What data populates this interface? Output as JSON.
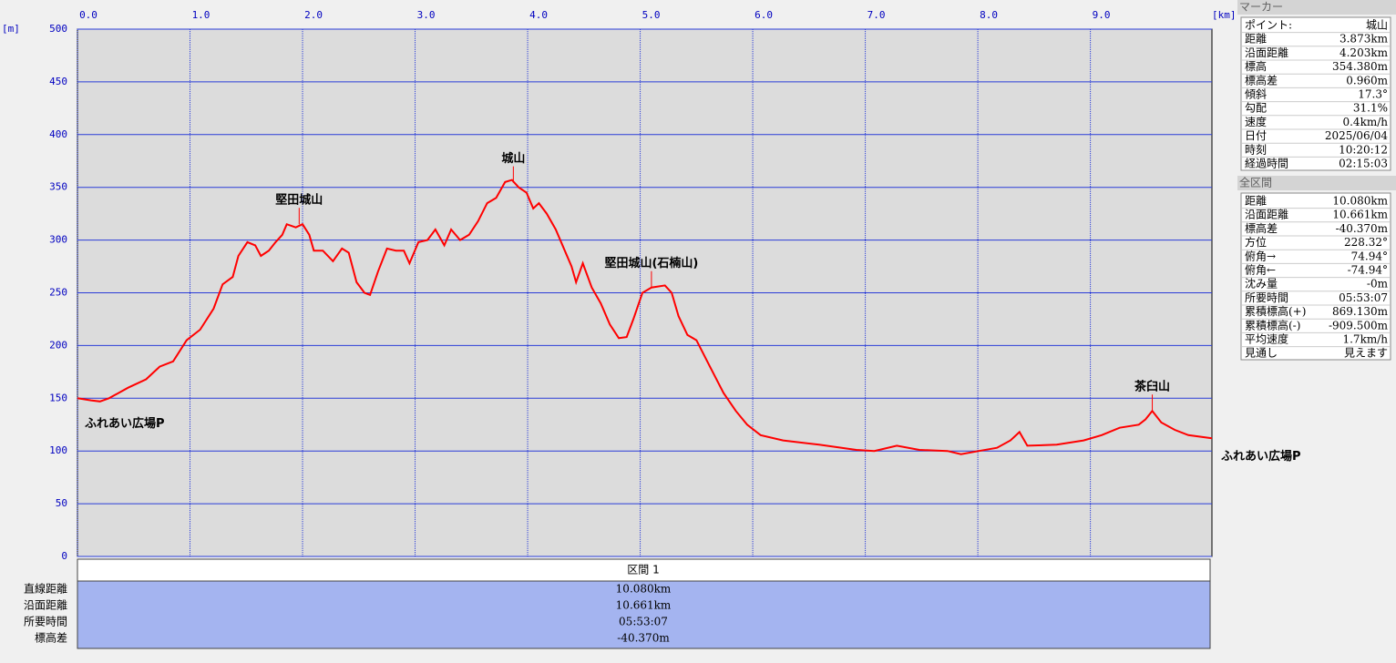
{
  "chart_data": {
    "type": "line",
    "color": "#ff0000",
    "grid": true,
    "y_unit": "[m]",
    "x_unit": "[km]",
    "xlim": [
      0,
      10.08
    ],
    "ylim": [
      0,
      500
    ],
    "xticks": [
      {
        "value": 0,
        "label": "0.0"
      },
      {
        "value": 1,
        "label": "1.0"
      },
      {
        "value": 2,
        "label": "2.0"
      },
      {
        "value": 3,
        "label": "3.0"
      },
      {
        "value": 4,
        "label": "4.0"
      },
      {
        "value": 5,
        "label": "5.0"
      },
      {
        "value": 6,
        "label": "6.0"
      },
      {
        "value": 7,
        "label": "7.0"
      },
      {
        "value": 8,
        "label": "8.0"
      },
      {
        "value": 9,
        "label": "9.0"
      }
    ],
    "yticks": [
      0,
      50,
      100,
      150,
      200,
      250,
      300,
      350,
      400,
      450,
      500
    ],
    "x": [
      0,
      0.12,
      0.2,
      0.28,
      0.45,
      0.61,
      0.73,
      0.85,
      0.97,
      1.09,
      1.21,
      1.29,
      1.38,
      1.43,
      1.51,
      1.58,
      1.63,
      1.7,
      1.76,
      1.82,
      1.86,
      1.94,
      2.0,
      2.06,
      2.1,
      2.18,
      2.27,
      2.35,
      2.41,
      2.48,
      2.55,
      2.6,
      2.67,
      2.75,
      2.83,
      2.9,
      2.95,
      3.03,
      3.11,
      3.18,
      3.26,
      3.32,
      3.4,
      3.48,
      3.56,
      3.64,
      3.72,
      3.8,
      3.86,
      3.92,
      3.99,
      4.05,
      4.1,
      4.17,
      4.25,
      4.33,
      4.39,
      4.43,
      4.49,
      4.57,
      4.65,
      4.73,
      4.81,
      4.88,
      4.94,
      5.02,
      5.1,
      5.22,
      5.28,
      5.34,
      5.42,
      5.5,
      5.62,
      5.74,
      5.85,
      5.95,
      6.07,
      6.27,
      6.59,
      6.92,
      7.08,
      7.28,
      7.48,
      7.73,
      7.85,
      8.01,
      8.17,
      8.29,
      8.37,
      8.44,
      8.7,
      8.94,
      9.1,
      9.26,
      9.43,
      9.49,
      9.55,
      9.63,
      9.75,
      9.87,
      10.08
    ],
    "values": [
      150,
      148,
      147,
      150,
      160,
      168,
      180,
      185,
      205,
      215,
      235,
      258,
      265,
      285,
      298,
      295,
      285,
      290,
      298,
      305,
      315,
      312,
      315,
      305,
      290,
      290,
      280,
      292,
      288,
      260,
      250,
      248,
      270,
      292,
      290,
      290,
      278,
      298,
      300,
      310,
      295,
      310,
      300,
      305,
      318,
      335,
      340,
      355,
      357,
      350,
      345,
      330,
      335,
      325,
      310,
      290,
      275,
      260,
      278,
      255,
      240,
      220,
      207,
      208,
      225,
      250,
      255,
      257,
      250,
      228,
      210,
      205,
      180,
      155,
      138,
      125,
      115,
      110,
      106,
      101,
      100,
      105,
      101,
      100,
      97,
      100,
      103,
      110,
      118,
      105,
      106,
      110,
      115,
      122,
      125,
      130,
      138,
      127,
      120,
      115,
      112
    ],
    "annotations": [
      {
        "text": "ふれあい広場P",
        "x": 0,
        "y": 150
      },
      {
        "text": "堅田城山",
        "x": 1.97,
        "y": 315
      },
      {
        "text": "城山",
        "x": 3.873,
        "y": 354.38
      },
      {
        "text": "堅田城山(石楠山)",
        "x": 5.1,
        "y": 255
      },
      {
        "text": "茶臼山",
        "x": 9.55,
        "y": 138
      },
      {
        "text": "ふれあい広場P",
        "x": 10.08,
        "y": 112
      }
    ]
  },
  "marker_panel": {
    "title": "マーカー",
    "rows": [
      [
        "ポイント:",
        "城山"
      ],
      [
        "距離",
        "3.873km"
      ],
      [
        "沿面距離",
        "4.203km"
      ],
      [
        "標高",
        "354.380m"
      ],
      [
        "標高差",
        "0.960m"
      ],
      [
        "傾斜",
        "17.3°"
      ],
      [
        "勾配",
        "31.1%"
      ],
      [
        "速度",
        "0.4km/h"
      ],
      [
        "日付",
        "2025/06/04"
      ],
      [
        "時刻",
        "10:20:12"
      ],
      [
        "経過時間",
        "02:15:03"
      ]
    ]
  },
  "total_panel": {
    "title": "全区間",
    "rows": [
      [
        "距離",
        "10.080km"
      ],
      [
        "沿面距離",
        "10.661km"
      ],
      [
        "標高差",
        "-40.370m"
      ],
      [
        "方位",
        "228.32°"
      ],
      [
        "俯角→",
        "74.94°"
      ],
      [
        "俯角←",
        "-74.94°"
      ],
      [
        "沈み量",
        "-0m"
      ],
      [
        "所要時間",
        "05:53:07"
      ],
      [
        "累積標高(+)",
        "869.130m"
      ],
      [
        "累積標高(-)",
        "-909.500m"
      ],
      [
        "平均速度",
        "1.7km/h"
      ],
      [
        "見通し",
        "見えます"
      ]
    ]
  },
  "section_table": {
    "header": "区間 1",
    "rows": [
      [
        "直線距離",
        "10.080km"
      ],
      [
        "沿面距離",
        "10.661km"
      ],
      [
        "所要時間",
        "05:53:07"
      ],
      [
        "標高差",
        "-40.370m"
      ]
    ]
  }
}
